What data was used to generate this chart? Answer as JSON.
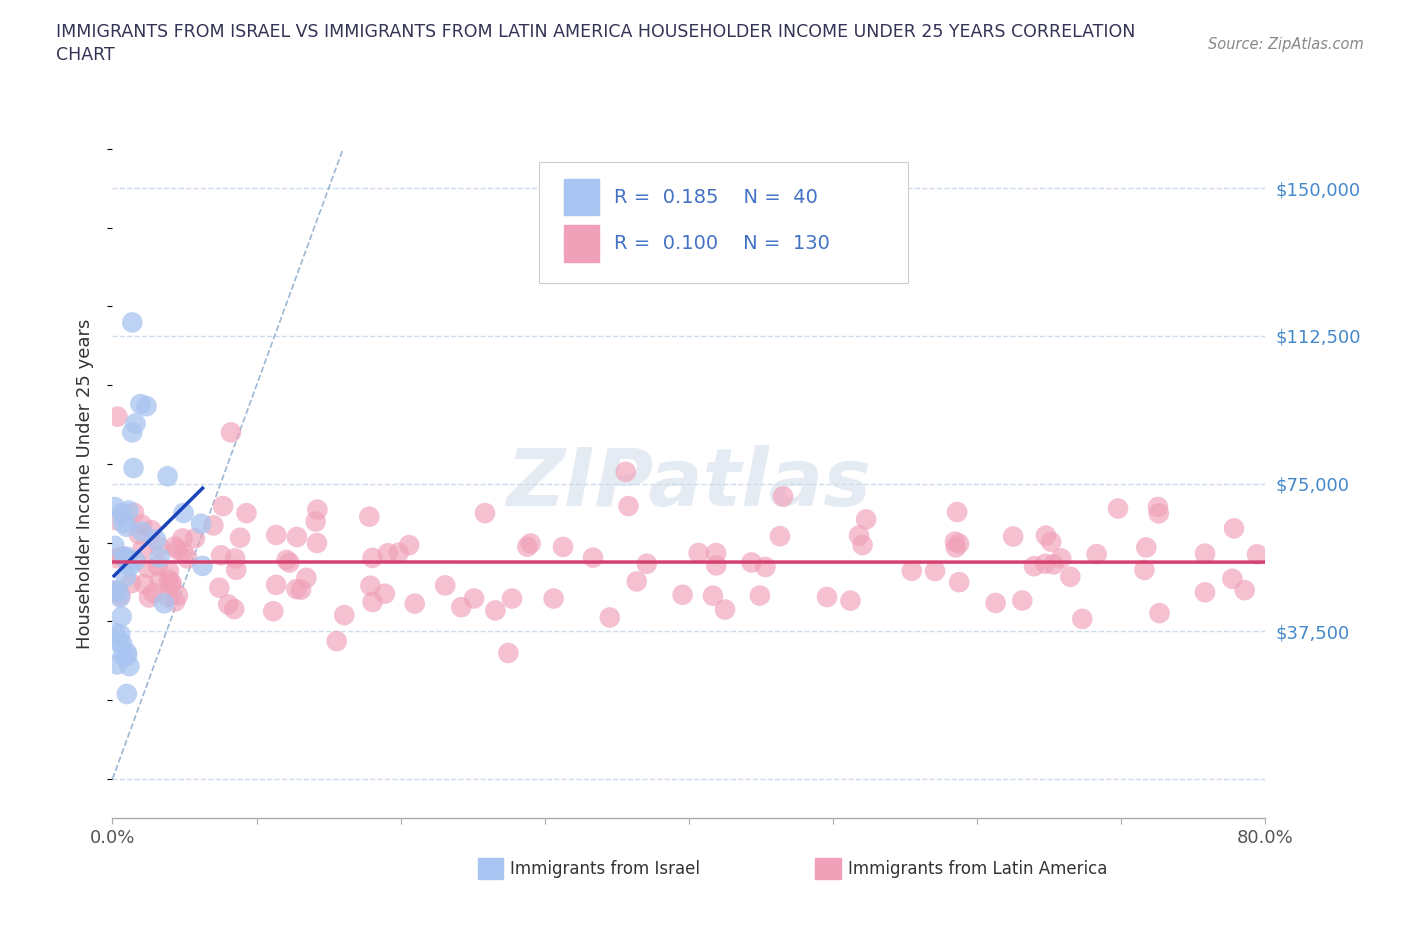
{
  "title_line1": "IMMIGRANTS FROM ISRAEL VS IMMIGRANTS FROM LATIN AMERICA HOUSEHOLDER INCOME UNDER 25 YEARS CORRELATION",
  "title_line2": "CHART",
  "source": "Source: ZipAtlas.com",
  "ylabel": "Householder Income Under 25 years",
  "xlim": [
    0.0,
    0.8
  ],
  "ylim": [
    -10000,
    160000
  ],
  "yaxis_min": 0,
  "yaxis_max": 150000,
  "yticks": [
    0,
    37500,
    75000,
    112500,
    150000
  ],
  "ytick_labels": [
    "",
    "$37,500",
    "$75,000",
    "$112,500",
    "$150,000"
  ],
  "xtick_positions": [
    0.0,
    0.1,
    0.2,
    0.3,
    0.4,
    0.5,
    0.6,
    0.7,
    0.8
  ],
  "xtick_labels": [
    "0.0%",
    "",
    "",
    "",
    "",
    "",
    "",
    "",
    "80.0%"
  ],
  "israel_color": "#a8c4f0",
  "latin_color": "#f0a0b8",
  "israel_trend_color": "#1a44bb",
  "latin_trend_color": "#d44070",
  "ref_line_color": "#90afd0",
  "israel_R": 0.185,
  "israel_N": 40,
  "latin_R": 0.1,
  "latin_N": 130,
  "legend_text_color": "#4472c4",
  "legend_label_color": "#333333",
  "ytick_color": "#4488cc",
  "xtick_color": "#555555",
  "grid_color": "#c8d8e8",
  "background_color": "#ffffff",
  "watermark_color": "#d0dce8",
  "title_color": "#333355",
  "source_color": "#888888"
}
